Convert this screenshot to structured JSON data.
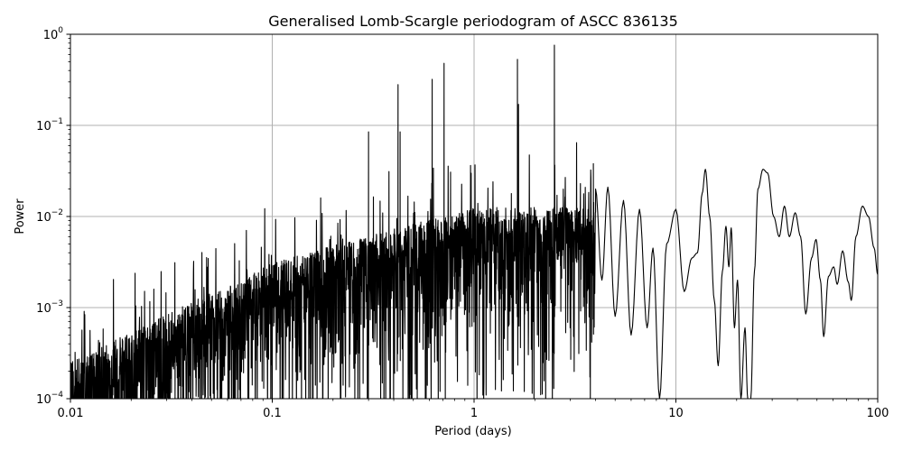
{
  "chart_data": {
    "type": "line",
    "title": "Generalised Lomb-Scargle periodogram of ASCC 836135",
    "xlabel": "Period (days)",
    "ylabel": "Power",
    "x_scale": "log",
    "y_scale": "log",
    "xlim": [
      0.01,
      100
    ],
    "ylim": [
      0.0001,
      1
    ],
    "grid": true,
    "line_color": "#000000",
    "grid_color": "#b0b0b0",
    "x_ticks": [
      {
        "value": 0.01,
        "label": "0.01"
      },
      {
        "value": 0.1,
        "label": "0.1"
      },
      {
        "value": 1,
        "label": "1"
      },
      {
        "value": 10,
        "label": "10"
      },
      {
        "value": 100,
        "label": "100"
      }
    ],
    "y_ticks": [
      {
        "value": 0.0001,
        "base": "10",
        "exp": "−4"
      },
      {
        "value": 0.001,
        "base": "10",
        "exp": "−3"
      },
      {
        "value": 0.01,
        "base": "10",
        "exp": "−2"
      },
      {
        "value": 0.1,
        "base": "10",
        "exp": "−1"
      },
      {
        "value": 1,
        "base": "10",
        "exp": "0"
      }
    ],
    "peaks": [
      {
        "x": 0.3,
        "y": 0.085
      },
      {
        "x": 0.42,
        "y": 0.28
      },
      {
        "x": 0.43,
        "y": 0.085
      },
      {
        "x": 0.62,
        "y": 0.32
      },
      {
        "x": 0.71,
        "y": 0.48
      },
      {
        "x": 1.64,
        "y": 0.53
      },
      {
        "x": 1.66,
        "y": 0.17
      },
      {
        "x": 2.5,
        "y": 0.76
      },
      {
        "x": 3.9,
        "y": 0.038
      }
    ],
    "long_period_curve": [
      [
        4.0,
        0.02
      ],
      [
        4.3,
        0.002
      ],
      [
        4.6,
        0.021
      ],
      [
        5.0,
        0.0008
      ],
      [
        5.5,
        0.015
      ],
      [
        6.0,
        0.0005
      ],
      [
        6.6,
        0.012
      ],
      [
        7.2,
        0.0006
      ],
      [
        7.7,
        0.0045
      ],
      [
        8.3,
        0.0001
      ],
      [
        9.0,
        0.005
      ],
      [
        10.0,
        0.012
      ],
      [
        11.0,
        0.0015
      ],
      [
        12.0,
        0.0035
      ],
      [
        12.8,
        0.004
      ],
      [
        13.5,
        0.018
      ],
      [
        14.0,
        0.033
      ],
      [
        14.7,
        0.01
      ],
      [
        15.5,
        0.0012
      ],
      [
        16.2,
        0.00023
      ],
      [
        17.0,
        0.0025
      ],
      [
        17.7,
        0.0078
      ],
      [
        18.3,
        0.0028
      ],
      [
        18.8,
        0.0075
      ],
      [
        19.5,
        0.0006
      ],
      [
        20.2,
        0.002
      ],
      [
        21.0,
        0.0001
      ],
      [
        22.0,
        0.0006
      ],
      [
        22.7,
        0.0001
      ],
      [
        23.5,
        0.0001
      ],
      [
        24.5,
        0.0025
      ],
      [
        25.5,
        0.02
      ],
      [
        27.0,
        0.033
      ],
      [
        28.5,
        0.03
      ],
      [
        30.5,
        0.01
      ],
      [
        32.5,
        0.006
      ],
      [
        34.5,
        0.013
      ],
      [
        36.5,
        0.006
      ],
      [
        39.0,
        0.011
      ],
      [
        41.5,
        0.006
      ],
      [
        44.0,
        0.00085
      ],
      [
        47.0,
        0.0035
      ],
      [
        49.5,
        0.0056
      ],
      [
        52.0,
        0.002
      ],
      [
        54.0,
        0.00048
      ],
      [
        57.0,
        0.0022
      ],
      [
        60.5,
        0.0028
      ],
      [
        63.0,
        0.0018
      ],
      [
        67.0,
        0.0042
      ],
      [
        71.5,
        0.0019
      ],
      [
        74.0,
        0.0012
      ],
      [
        78.0,
        0.006
      ],
      [
        84.0,
        0.013
      ],
      [
        90.0,
        0.01
      ],
      [
        96.0,
        0.0045
      ],
      [
        100.0,
        0.0023
      ]
    ]
  }
}
